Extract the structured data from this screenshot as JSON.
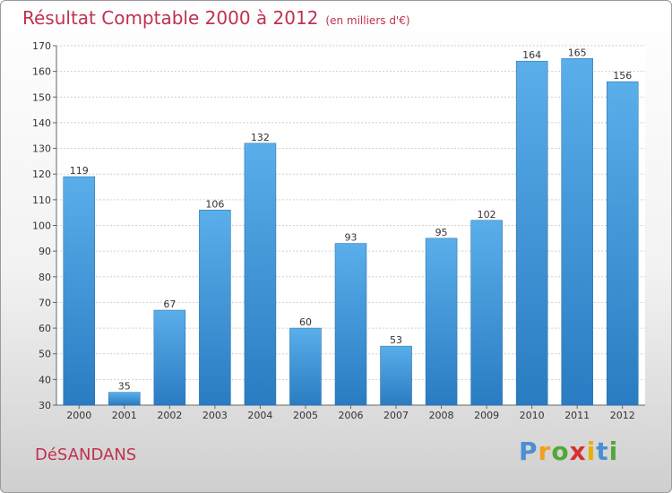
{
  "chart_data": {
    "type": "bar",
    "title": "Résultat Comptable 2000 à 2012",
    "subtitle": "(en milliers d'€)",
    "categories": [
      "2000",
      "2001",
      "2002",
      "2003",
      "2004",
      "2005",
      "2006",
      "2007",
      "2008",
      "2009",
      "2010",
      "2011",
      "2012"
    ],
    "values": [
      119,
      35,
      67,
      106,
      132,
      60,
      93,
      53,
      95,
      102,
      164,
      165,
      156
    ],
    "ylim": [
      30,
      170
    ],
    "yticks": [
      30,
      40,
      50,
      60,
      70,
      80,
      90,
      100,
      110,
      120,
      130,
      140,
      150,
      160,
      170
    ],
    "grid": true,
    "bar_color": "#3a8fd6"
  },
  "footer": {
    "commune": "DéSANDANS",
    "logo": {
      "letters": [
        "P",
        "r",
        "o",
        "x",
        "i",
        "t",
        "i"
      ],
      "colors": [
        "#4a8fd4",
        "#f0a020",
        "#52a836",
        "#d83030",
        "#e8b000",
        "#4a8fd4",
        "#52a836"
      ]
    }
  }
}
